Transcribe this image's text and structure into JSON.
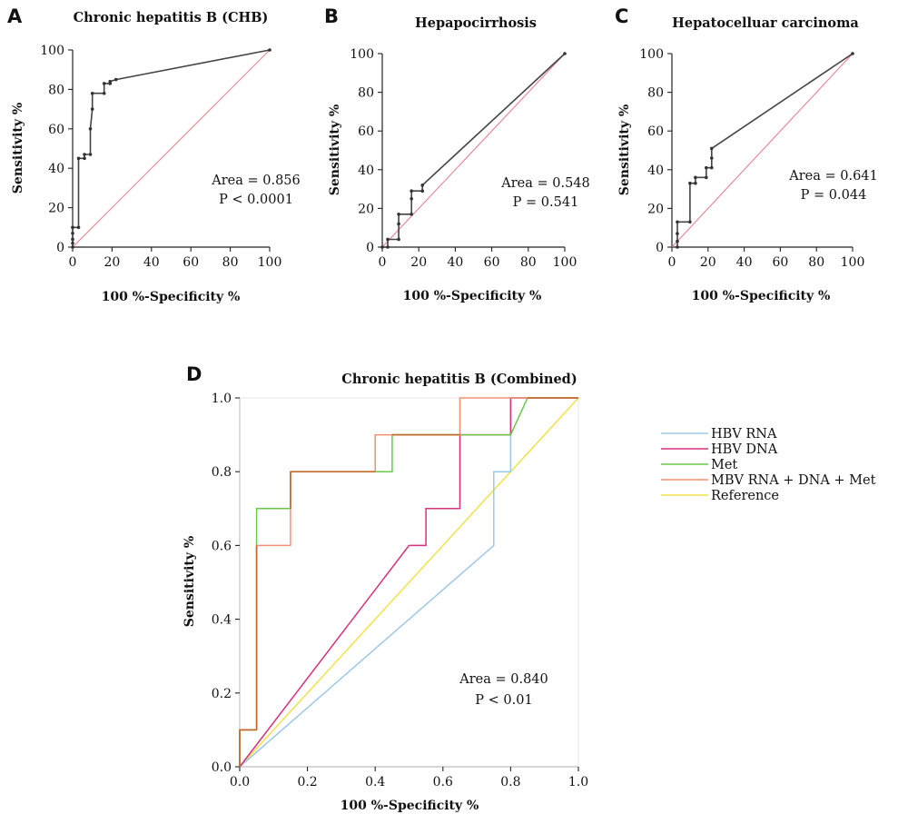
{
  "chart_data": [
    {
      "panel": "A",
      "type": "line",
      "title": "Chronic hepatitis B (CHB)",
      "xlabel": "100 %-Specificity %",
      "ylabel": "Sensitivity %",
      "xlim": [
        0,
        100
      ],
      "ylim": [
        0,
        100
      ],
      "xticks": [
        0,
        20,
        40,
        60,
        80,
        100
      ],
      "yticks": [
        0,
        20,
        40,
        60,
        80,
        100
      ],
      "reference_color": "#e8828f",
      "roc_color": "#444444",
      "roc": {
        "x": [
          0,
          0,
          0,
          0,
          0,
          0,
          3,
          3,
          6,
          6,
          9,
          9,
          10,
          10,
          16,
          16,
          19,
          19,
          22,
          100
        ],
        "y": [
          0,
          2,
          4,
          7,
          10,
          10,
          10,
          45,
          45,
          47,
          47,
          60,
          70,
          78,
          78,
          83,
          83,
          84,
          85,
          100
        ]
      },
      "annotation": [
        "Area = 0.856",
        "P < 0.0001"
      ]
    },
    {
      "panel": "B",
      "type": "line",
      "title": "Hepapocirrhosis",
      "xlabel": "100 %-Specificity %",
      "ylabel": "Sensitivity %",
      "xlim": [
        0,
        100
      ],
      "ylim": [
        0,
        100
      ],
      "xticks": [
        0,
        20,
        40,
        60,
        80,
        100
      ],
      "yticks": [
        0,
        20,
        40,
        60,
        80,
        100
      ],
      "reference_color": "#e8828f",
      "roc_color": "#444444",
      "roc": {
        "x": [
          0,
          3,
          3,
          9,
          9,
          9,
          16,
          16,
          16,
          22,
          22,
          100
        ],
        "y": [
          0,
          0,
          4,
          4,
          12,
          17,
          17,
          25,
          29,
          29,
          32,
          100
        ]
      },
      "annotation": [
        "Area = 0.548",
        "P = 0.541"
      ]
    },
    {
      "panel": "C",
      "type": "line",
      "title": "Hepatocelluar carcinoma",
      "xlabel": "100 %-Specificity %",
      "ylabel": "Sensitivity %",
      "xlim": [
        0,
        100
      ],
      "ylim": [
        0,
        100
      ],
      "xticks": [
        0,
        20,
        40,
        60,
        80,
        100
      ],
      "yticks": [
        0,
        20,
        40,
        60,
        80,
        100
      ],
      "reference_color": "#e8828f",
      "roc_color": "#444444",
      "roc": {
        "x": [
          3,
          3,
          3,
          3,
          10,
          10,
          13,
          13,
          19,
          19,
          22,
          22,
          22,
          100
        ],
        "y": [
          0,
          3,
          7,
          13,
          13,
          33,
          33,
          36,
          36,
          41,
          41,
          46,
          51,
          100
        ]
      },
      "annotation": [
        "Area = 0.641",
        "P = 0.044"
      ]
    },
    {
      "panel": "D",
      "type": "line",
      "title": "Chronic hepatitis B (Combined)",
      "xlabel": "100 %-Specificity %",
      "ylabel": "Sensitivity %",
      "xlim": [
        0,
        1
      ],
      "ylim": [
        0,
        1
      ],
      "xticks": [
        "0.0",
        "0.2",
        "0.4",
        "0.6",
        "0.8",
        "1.0"
      ],
      "yticks": [
        "0.0",
        "0.2",
        "0.4",
        "0.6",
        "0.8",
        "1.0"
      ],
      "series": [
        {
          "name": "HBV RNA",
          "color": "#9ec8e6",
          "x": [
            0,
            0.75,
            0.75,
            0.8,
            0.8,
            1.0
          ],
          "y": [
            0,
            0.6,
            0.8,
            0.8,
            1.0,
            1.0
          ]
        },
        {
          "name": "HBV DNA",
          "color": "#d6317f",
          "x": [
            0,
            0.5,
            0.55,
            0.55,
            0.65,
            0.65,
            0.8,
            0.8,
            1.0
          ],
          "y": [
            0,
            0.6,
            0.6,
            0.7,
            0.7,
            0.9,
            0.9,
            1.0,
            1.0
          ]
        },
        {
          "name": "Met",
          "color": "#69c94a",
          "x": [
            0,
            0,
            0.05,
            0.05,
            0.15,
            0.15,
            0.45,
            0.45,
            0.8,
            0.85,
            1.0
          ],
          "y": [
            0,
            0.1,
            0.1,
            0.7,
            0.7,
            0.8,
            0.8,
            0.9,
            0.9,
            1.0,
            1.0
          ]
        },
        {
          "name": "MBV RNA + DNA + Met",
          "color": "#f09073",
          "x": [
            0,
            0,
            0.05,
            0.05,
            0.15,
            0.15,
            0.4,
            0.4,
            0.65,
            0.65,
            1.0
          ],
          "y": [
            0,
            0.1,
            0.1,
            0.6,
            0.6,
            0.8,
            0.8,
            0.9,
            0.9,
            1.0,
            1.0
          ]
        },
        {
          "name": "Reference",
          "color": "#f0e24a",
          "x": [
            0,
            1.0
          ],
          "y": [
            0,
            1.0
          ]
        }
      ],
      "overlap_color": "#c06a2a",
      "annotation": [
        "Area = 0.840",
        "P < 0.01"
      ],
      "legend": "right"
    }
  ]
}
